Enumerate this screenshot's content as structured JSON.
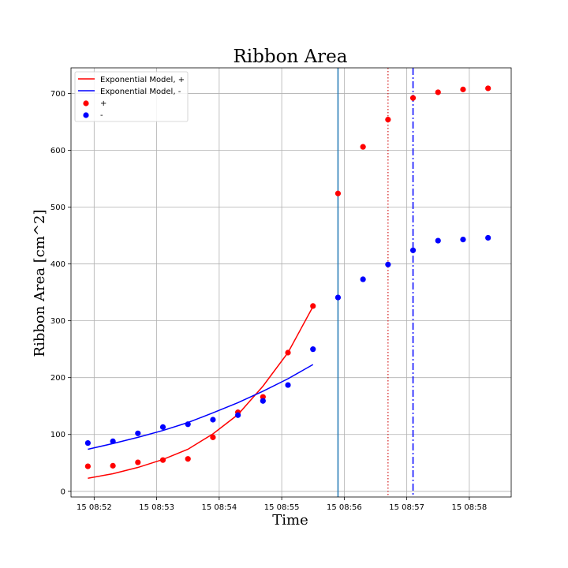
{
  "chart_data": {
    "type": "scatter",
    "title": "Ribbon Area",
    "xlabel": "Time",
    "ylabel": "Ribbon Area [cm^2]",
    "grid": true,
    "legend_position": "top-left",
    "xlim_minutes": [
      51.63,
      58.67
    ],
    "ylim": [
      -10,
      745
    ],
    "x_ticks": [
      {
        "value": 52,
        "label": "15 08:52"
      },
      {
        "value": 53,
        "label": "15 08:53"
      },
      {
        "value": 54,
        "label": "15 08:54"
      },
      {
        "value": 55,
        "label": "15 08:55"
      },
      {
        "value": 56,
        "label": "15 08:56"
      },
      {
        "value": 57,
        "label": "15 08:57"
      },
      {
        "value": 58,
        "label": "15 08:58"
      }
    ],
    "y_ticks": [
      0,
      100,
      200,
      300,
      400,
      500,
      600,
      700
    ],
    "colors": {
      "plus": "#ff0000",
      "minus": "#0000ff",
      "vline_solid": "#1f77b4",
      "vline_dotted": "#d62728",
      "vline_dashdot": "#0000ff"
    },
    "series": [
      {
        "name": "Exponential Model, +",
        "kind": "line",
        "color": "#ff0000",
        "x": [
          51.9,
          52.3,
          52.7,
          53.1,
          53.5,
          53.9,
          54.3,
          54.7,
          55.1,
          55.5
        ],
        "y": [
          23,
          31,
          42,
          56,
          74,
          101,
          135,
          185,
          244,
          325
        ]
      },
      {
        "name": "Exponential Model, -",
        "kind": "line",
        "color": "#0000ff",
        "x": [
          51.9,
          52.3,
          52.7,
          53.1,
          53.5,
          53.9,
          54.3,
          54.7,
          55.1,
          55.5
        ],
        "y": [
          74,
          84,
          95,
          107,
          121,
          138,
          156,
          176,
          198,
          223
        ]
      },
      {
        "name": "+",
        "kind": "scatter",
        "color": "#ff0000",
        "x": [
          51.9,
          52.3,
          52.7,
          53.1,
          53.5,
          53.9,
          54.3,
          54.7,
          55.1,
          55.5,
          55.9,
          56.3,
          56.7,
          57.1,
          57.5,
          57.9,
          58.3
        ],
        "y": [
          44,
          45,
          51,
          55,
          57,
          95,
          139,
          166,
          244,
          326,
          524,
          606,
          654,
          692,
          702,
          707,
          709
        ]
      },
      {
        "name": "-",
        "kind": "scatter",
        "color": "#0000ff",
        "x": [
          51.9,
          52.3,
          52.7,
          53.1,
          53.5,
          53.9,
          54.3,
          54.7,
          55.1,
          55.5,
          55.9,
          56.3,
          56.7,
          57.1,
          57.5,
          57.9,
          58.3
        ],
        "y": [
          85,
          88,
          102,
          113,
          118,
          126,
          134,
          159,
          187,
          250,
          341,
          373,
          399,
          424,
          441,
          443,
          446
        ]
      }
    ],
    "vlines": [
      {
        "x": 55.9,
        "style": "solid",
        "color": "#1f77b4"
      },
      {
        "x": 56.7,
        "style": "dotted",
        "color": "#d62728"
      },
      {
        "x": 57.1,
        "style": "dashdot",
        "color": "#0000ff"
      }
    ]
  }
}
